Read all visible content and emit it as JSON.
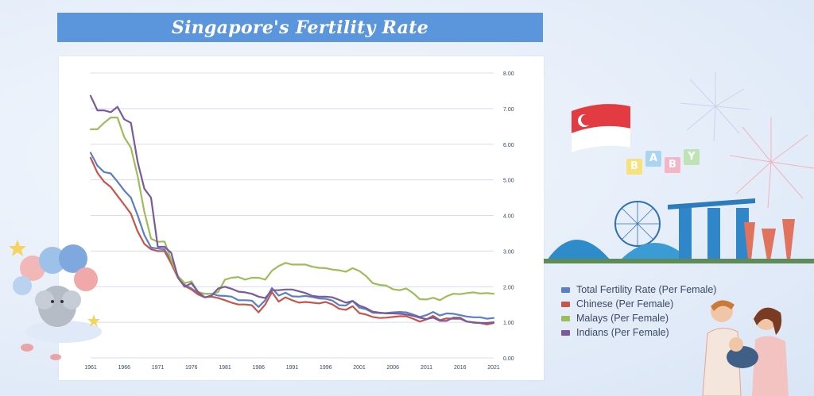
{
  "title": "Singapore's Fertility Rate",
  "colors": {
    "title_bg": "#5b95dc",
    "grid": "#d9dcf0",
    "tick_text": "#34495e",
    "series": [
      "#5a7fc4",
      "#c5564c",
      "#9cbd5a",
      "#7a5a9c"
    ]
  },
  "chart_data": {
    "type": "line",
    "title": "",
    "xlabel": "",
    "ylabel": "",
    "ylim": [
      0,
      8
    ],
    "y_ticks": [
      "0.00",
      "1.00",
      "2.00",
      "3.00",
      "4.00",
      "5.00",
      "6.00",
      "7.00",
      "8.00"
    ],
    "y_axis_side": "right",
    "x_ticks": [
      "1961",
      "1966",
      "1971",
      "1976",
      "1981",
      "1986",
      "1991",
      "1996",
      "2001",
      "2006",
      "2011",
      "2016",
      "2021"
    ],
    "grid": true,
    "legend_position": "right",
    "x": [
      1961,
      1962,
      1963,
      1964,
      1965,
      1966,
      1967,
      1968,
      1969,
      1970,
      1971,
      1972,
      1973,
      1974,
      1975,
      1976,
      1977,
      1978,
      1979,
      1980,
      1981,
      1982,
      1983,
      1984,
      1985,
      1986,
      1987,
      1988,
      1989,
      1990,
      1991,
      1992,
      1993,
      1994,
      1995,
      1996,
      1997,
      1998,
      1999,
      2000,
      2001,
      2002,
      2003,
      2004,
      2005,
      2006,
      2007,
      2008,
      2009,
      2010,
      2011,
      2012,
      2013,
      2014,
      2015,
      2016,
      2017,
      2018,
      2019,
      2020,
      2021
    ],
    "series": [
      {
        "name": "Total Fertility Rate (Per Female)",
        "values": [
          5.76,
          5.4,
          5.22,
          5.18,
          4.95,
          4.7,
          4.5,
          4.0,
          3.45,
          3.1,
          3.07,
          3.05,
          2.7,
          2.3,
          2.05,
          1.95,
          1.82,
          1.8,
          1.8,
          1.75,
          1.74,
          1.72,
          1.62,
          1.62,
          1.61,
          1.43,
          1.62,
          1.96,
          1.75,
          1.83,
          1.73,
          1.72,
          1.74,
          1.71,
          1.67,
          1.66,
          1.61,
          1.48,
          1.47,
          1.6,
          1.41,
          1.37,
          1.27,
          1.26,
          1.26,
          1.28,
          1.29,
          1.28,
          1.22,
          1.15,
          1.2,
          1.29,
          1.19,
          1.25,
          1.24,
          1.2,
          1.16,
          1.14,
          1.14,
          1.1,
          1.12
        ]
      },
      {
        "name": "Chinese (Per Female)",
        "values": [
          5.62,
          5.2,
          4.95,
          4.8,
          4.55,
          4.3,
          4.05,
          3.55,
          3.2,
          3.05,
          3.0,
          3.0,
          2.65,
          2.25,
          2.02,
          1.92,
          1.78,
          1.7,
          1.72,
          1.68,
          1.62,
          1.55,
          1.5,
          1.5,
          1.48,
          1.28,
          1.5,
          1.85,
          1.58,
          1.7,
          1.62,
          1.55,
          1.57,
          1.55,
          1.53,
          1.57,
          1.5,
          1.38,
          1.35,
          1.45,
          1.26,
          1.22,
          1.15,
          1.12,
          1.13,
          1.15,
          1.17,
          1.17,
          1.1,
          1.02,
          1.08,
          1.18,
          1.06,
          1.11,
          1.1,
          1.1,
          1.02,
          0.99,
          0.98,
          0.94,
          0.98
        ]
      },
      {
        "name": "Malays (Per Female)",
        "values": [
          6.42,
          6.42,
          6.6,
          6.75,
          6.75,
          6.2,
          5.9,
          5.1,
          4.1,
          3.35,
          3.26,
          3.27,
          2.75,
          2.3,
          2.1,
          2.15,
          1.85,
          1.8,
          1.8,
          1.85,
          2.2,
          2.25,
          2.27,
          2.2,
          2.25,
          2.25,
          2.2,
          2.45,
          2.58,
          2.67,
          2.62,
          2.62,
          2.62,
          2.56,
          2.53,
          2.52,
          2.48,
          2.46,
          2.42,
          2.52,
          2.44,
          2.3,
          2.1,
          2.05,
          2.03,
          1.93,
          1.9,
          1.95,
          1.82,
          1.65,
          1.64,
          1.69,
          1.62,
          1.73,
          1.8,
          1.79,
          1.82,
          1.84,
          1.81,
          1.82,
          1.8
        ]
      },
      {
        "name": "Indians (Per Female)",
        "values": [
          7.36,
          6.95,
          6.95,
          6.9,
          7.05,
          6.7,
          6.6,
          5.5,
          4.75,
          4.5,
          3.12,
          3.12,
          2.95,
          2.25,
          2.0,
          2.1,
          1.85,
          1.7,
          1.75,
          1.95,
          2.0,
          1.94,
          1.86,
          1.84,
          1.8,
          1.72,
          1.68,
          1.9,
          1.9,
          1.92,
          1.92,
          1.87,
          1.82,
          1.74,
          1.72,
          1.72,
          1.7,
          1.63,
          1.55,
          1.6,
          1.47,
          1.4,
          1.3,
          1.27,
          1.25,
          1.25,
          1.24,
          1.22,
          1.18,
          1.13,
          1.09,
          1.13,
          1.04,
          1.04,
          1.13,
          1.13,
          1.02,
          1.0,
          0.98,
          0.98,
          1.0
        ]
      }
    ]
  },
  "decorations": {
    "baby_blocks": [
      "B",
      "A",
      "B",
      "Y"
    ]
  }
}
